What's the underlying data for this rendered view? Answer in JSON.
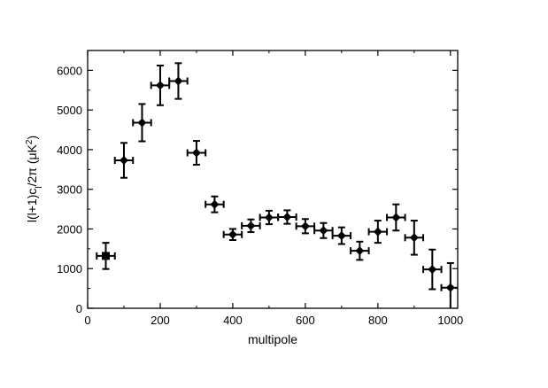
{
  "chart_data": {
    "type": "scatter",
    "xlabel": "multipole",
    "ylabel": {
      "full": "l(l+1)c_l/2π (μK²)",
      "lead": "l(l+1)c",
      "sub": "l",
      "mid": "/2π (μK",
      "sup": "2",
      "tail": ")"
    },
    "xlim": [
      0,
      1020
    ],
    "ylim": [
      0,
      6500
    ],
    "xticks": [
      0,
      200,
      400,
      600,
      800,
      1000
    ],
    "yticks": [
      0,
      1000,
      2000,
      3000,
      4000,
      5000,
      6000
    ],
    "grid": false,
    "legend": "none",
    "series": [
      {
        "points": [
          {
            "x": 50,
            "y": 1320,
            "x_err": 25,
            "y_err": 330,
            "marker": "square"
          },
          {
            "x": 100,
            "y": 3730,
            "x_err": 25,
            "y_err": 440,
            "marker": "diamond"
          },
          {
            "x": 150,
            "y": 4680,
            "x_err": 25,
            "y_err": 470,
            "marker": "diamond"
          },
          {
            "x": 200,
            "y": 5620,
            "x_err": 25,
            "y_err": 500,
            "marker": "diamond"
          },
          {
            "x": 250,
            "y": 5730,
            "x_err": 25,
            "y_err": 450,
            "marker": "diamond"
          },
          {
            "x": 300,
            "y": 3920,
            "x_err": 25,
            "y_err": 300,
            "marker": "diamond"
          },
          {
            "x": 350,
            "y": 2620,
            "x_err": 25,
            "y_err": 200,
            "marker": "diamond"
          },
          {
            "x": 400,
            "y": 1860,
            "x_err": 25,
            "y_err": 140,
            "marker": "diamond"
          },
          {
            "x": 450,
            "y": 2080,
            "x_err": 25,
            "y_err": 160,
            "marker": "diamond"
          },
          {
            "x": 500,
            "y": 2290,
            "x_err": 25,
            "y_err": 170,
            "marker": "diamond"
          },
          {
            "x": 550,
            "y": 2300,
            "x_err": 25,
            "y_err": 170,
            "marker": "diamond"
          },
          {
            "x": 600,
            "y": 2070,
            "x_err": 25,
            "y_err": 180,
            "marker": "diamond"
          },
          {
            "x": 650,
            "y": 1960,
            "x_err": 25,
            "y_err": 190,
            "marker": "diamond"
          },
          {
            "x": 700,
            "y": 1830,
            "x_err": 25,
            "y_err": 210,
            "marker": "diamond"
          },
          {
            "x": 750,
            "y": 1450,
            "x_err": 25,
            "y_err": 230,
            "marker": "diamond"
          },
          {
            "x": 800,
            "y": 1930,
            "x_err": 25,
            "y_err": 280,
            "marker": "diamond"
          },
          {
            "x": 850,
            "y": 2290,
            "x_err": 25,
            "y_err": 330,
            "marker": "diamond"
          },
          {
            "x": 900,
            "y": 1780,
            "x_err": 25,
            "y_err": 430,
            "marker": "diamond"
          },
          {
            "x": 950,
            "y": 980,
            "x_err": 25,
            "y_err": 500,
            "marker": "diamond"
          },
          {
            "x": 1000,
            "y": 520,
            "x_err": 25,
            "y_err": 620,
            "marker": "diamond"
          }
        ]
      }
    ],
    "colors": {
      "ink": "#000000",
      "background": "#ffffff"
    }
  }
}
